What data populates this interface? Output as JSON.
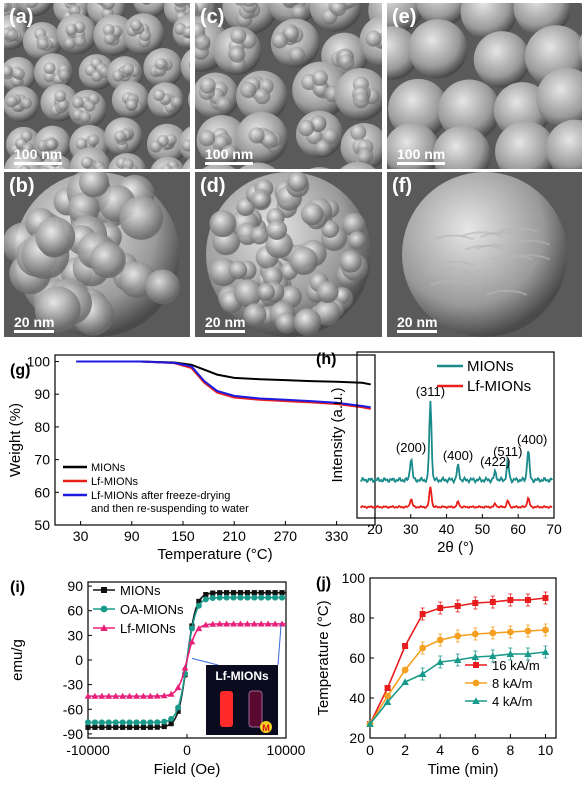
{
  "sem_panels": [
    {
      "label": "(a)",
      "scale": "100 nm"
    },
    {
      "label": "(b)",
      "scale": "20 nm"
    },
    {
      "label": "(c)",
      "scale": "100 nm"
    },
    {
      "label": "(d)",
      "scale": "20 nm"
    },
    {
      "label": "(e)",
      "scale": "100 nm"
    },
    {
      "label": "(f)",
      "scale": "20 nm"
    }
  ],
  "chart_data": [
    {
      "panel": "(g)",
      "type": "line",
      "xlabel": "Temperature (°C)",
      "ylabel": "Weight (%)",
      "xlim": [
        0,
        375
      ],
      "ylim": [
        50,
        102
      ],
      "xticks": [
        "30",
        "90",
        "150",
        "210",
        "270",
        "330"
      ],
      "yticks": [
        "50",
        "60",
        "70",
        "80",
        "90",
        "100"
      ],
      "legend_position": "bottom-left",
      "series": [
        {
          "name": "MIONs",
          "color": "#000000",
          "x": [
            25,
            60,
            100,
            140,
            160,
            175,
            190,
            210,
            240,
            270,
            300,
            330,
            360,
            370
          ],
          "y": [
            100,
            100,
            100,
            99.7,
            99,
            97.5,
            96,
            95,
            94.6,
            94.3,
            94,
            93.8,
            93.5,
            93
          ]
        },
        {
          "name": "Lf-MIONs",
          "color": "#e8201c",
          "x": [
            25,
            60,
            100,
            140,
            160,
            175,
            190,
            210,
            240,
            270,
            300,
            330,
            360,
            370
          ],
          "y": [
            100,
            100,
            100,
            99.5,
            98,
            93.5,
            90.5,
            89,
            88.3,
            87.9,
            87.5,
            87,
            86,
            85.5
          ]
        },
        {
          "name": "Lf-MIONs after freeze-drying and then re-suspending to water",
          "color": "#1c1ce0",
          "x": [
            25,
            60,
            100,
            140,
            160,
            175,
            190,
            210,
            240,
            270,
            300,
            330,
            360,
            370
          ],
          "y": [
            100,
            100,
            100,
            99.6,
            98.5,
            94,
            91,
            89.5,
            88.7,
            88.3,
            87.9,
            87.4,
            86.4,
            86
          ]
        }
      ]
    },
    {
      "panel": "(h)",
      "type": "line",
      "xlabel": "2θ (°)",
      "ylabel": "Intensity (a.u.)",
      "xlim": [
        15,
        70
      ],
      "xticks": [
        "20",
        "30",
        "40",
        "50",
        "60",
        "70"
      ],
      "legend_position": "top-right",
      "peaks": [
        {
          "label": "(200)",
          "x": 30.1
        },
        {
          "label": "(311)",
          "x": 35.5
        },
        {
          "label": "(400)",
          "x": 43.2
        },
        {
          "label": "(422)",
          "x": 53.6
        },
        {
          "label": "(511)",
          "x": 57.1
        },
        {
          "label": "(400)",
          "x": 62.8
        }
      ],
      "series": [
        {
          "name": "MIONs",
          "color": "#1a8a8a",
          "peak_heights": [
            22,
            78,
            14,
            8,
            18,
            30
          ]
        },
        {
          "name": "Lf-MIONs",
          "color": "#e8201c",
          "peak_heights": [
            8,
            20,
            5,
            3,
            6,
            9
          ]
        }
      ]
    },
    {
      "panel": "(i)",
      "type": "scatter",
      "xlabel": "Field (Oe)",
      "ylabel": "emu/g",
      "xlim": [
        -10000,
        10000
      ],
      "ylim": [
        -95,
        95
      ],
      "xticks": [
        "-10000",
        "0",
        "10000"
      ],
      "yticks": [
        "-90",
        "-60",
        "-30",
        "0",
        "30",
        "60",
        "90"
      ],
      "legend_position": "top-left",
      "inset_label": "Lf-MIONs",
      "inset_badge": "M",
      "series": [
        {
          "name": "MIONs",
          "color": "#111111",
          "marker": "square",
          "ms": 82
        },
        {
          "name": "OA-MIONs",
          "color": "#1a9a8a",
          "marker": "circle",
          "ms": 76
        },
        {
          "name": "Lf-MIONs",
          "color": "#e8207a",
          "marker": "triangle",
          "ms": 44
        }
      ]
    },
    {
      "panel": "(j)",
      "type": "line",
      "xlabel": "Time (min)",
      "ylabel": "Temperature (°C)",
      "xlim": [
        0,
        10.6
      ],
      "ylim": [
        20,
        100
      ],
      "xticks": [
        "0",
        "2",
        "4",
        "6",
        "8",
        "10"
      ],
      "yticks": [
        "20",
        "40",
        "60",
        "80",
        "100"
      ],
      "legend_position": "bottom-right",
      "series": [
        {
          "name": "16 kA/m",
          "color": "#e81c1c",
          "marker": "square",
          "x": [
            0,
            1,
            2,
            3,
            4,
            5,
            6,
            7,
            8,
            9,
            10
          ],
          "y": [
            27,
            45,
            66,
            82,
            85,
            86,
            87.5,
            88,
            89,
            89,
            90
          ]
        },
        {
          "name": "8 kA/m",
          "color": "#f5a020",
          "marker": "circle",
          "x": [
            0,
            1,
            2,
            3,
            4,
            5,
            6,
            7,
            8,
            9,
            10
          ],
          "y": [
            27,
            41,
            54,
            65,
            69,
            71,
            72,
            72.5,
            73,
            73.5,
            74
          ]
        },
        {
          "name": "4 kA/m",
          "color": "#1a9a8a",
          "marker": "triangle",
          "x": [
            0,
            1,
            2,
            3,
            4,
            5,
            6,
            7,
            8,
            9,
            10
          ],
          "y": [
            27,
            38,
            48,
            52,
            58,
            59,
            60.5,
            61,
            62,
            62,
            63
          ]
        }
      ]
    }
  ],
  "colors": {
    "background": "#ffffff",
    "axis": "#000000"
  }
}
